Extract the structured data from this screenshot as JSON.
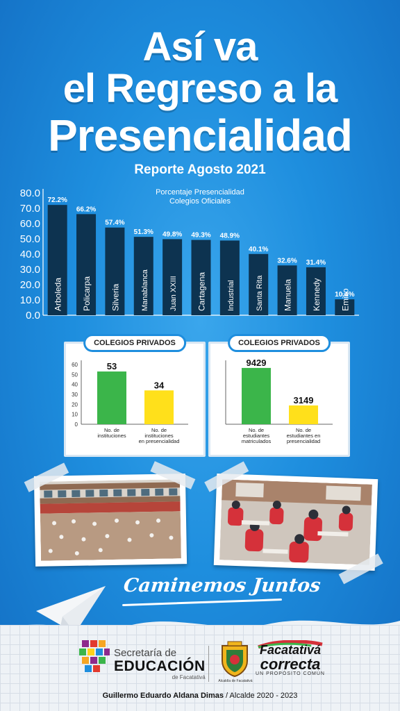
{
  "header": {
    "title_line1": "Así va",
    "title_line2": "el Regreso a la",
    "title_line3": "Presencialidad",
    "subtitle": "Reporte Agosto 2021"
  },
  "chart_data": [
    {
      "type": "bar",
      "title": "Porcentaje Presencialidad\nColegios Oficiales",
      "title_lines": [
        "Porcentaje Presencialidad",
        "Colegios Oficiales"
      ],
      "categories": [
        "Arboleda",
        "Policarpa",
        "Silveria",
        "Manablanca",
        "Juan XXIII",
        "Cartagena",
        "Industrial",
        "Santa Rita",
        "Manuela",
        "Kennedy",
        "Emilio"
      ],
      "values": [
        72.2,
        66.2,
        57.4,
        51.3,
        49.8,
        49.3,
        48.9,
        40.1,
        32.6,
        31.4,
        10.4
      ],
      "data_labels": [
        "72.2%",
        "66.2%",
        "57.4%",
        "51.3%",
        "49.8%",
        "49.3%",
        "48.9%",
        "40.1%",
        "32.6%",
        "31.4%",
        "10.4%"
      ],
      "yticks": [
        "0.0",
        "10.0",
        "20.0",
        "30.0",
        "40.0",
        "50.0",
        "60.0",
        "70.0",
        "80.0"
      ],
      "ylim": [
        0,
        80
      ],
      "bar_color": "#0d3350",
      "grid": false
    },
    {
      "type": "bar",
      "title": "COLEGIOS PRIVADOS",
      "categories": [
        "No. de instituciones",
        "No. de instituciones en presencialidad"
      ],
      "category_lines": [
        [
          "No. de",
          "instituciones"
        ],
        [
          "No. de",
          "instituciones",
          "en presencialidad"
        ]
      ],
      "values": [
        53,
        34
      ],
      "data_labels": [
        "53",
        "34"
      ],
      "yticks": [
        "0",
        "10",
        "20",
        "30",
        "40",
        "50",
        "60"
      ],
      "ylim": [
        0,
        60
      ],
      "colors": [
        "#3bb54a",
        "#ffe01b"
      ],
      "grid": false
    },
    {
      "type": "bar",
      "title": "COLEGIOS PRIVADOS",
      "categories": [
        "No. de estudiantes matriculados",
        "No. de estudiantes en presencialidad"
      ],
      "category_lines": [
        [
          "No. de",
          "estudiantes",
          "matriculados"
        ],
        [
          "No. de",
          "estudiantes en",
          "presencialidad"
        ]
      ],
      "values": [
        9429,
        3149
      ],
      "data_labels": [
        "9429",
        "3149"
      ],
      "ylim": [
        0,
        10000
      ],
      "colors": [
        "#3bb54a",
        "#ffe01b"
      ],
      "grid": false
    }
  ],
  "slogan": "Caminemos Juntos",
  "footer": {
    "secretaria_line1": "Secretaría de",
    "secretaria_line2": "EDUCACIÓN",
    "secretaria_line3": "de Facatativá",
    "crest_caption": "Alcaldía de Facatativá",
    "brand_line1": "Facatativá",
    "brand_line2": "correcta",
    "brand_line3": "UN PROPÓSITO COMÚN",
    "credit_name": "Guillermo Eduardo Aldana Dimas",
    "credit_role": " / Alcalde 2020 - 2023"
  },
  "colors": {
    "background": "#1e8ede",
    "bar_dark": "#0d3350",
    "green": "#3bb54a",
    "yellow": "#ffe01b"
  }
}
